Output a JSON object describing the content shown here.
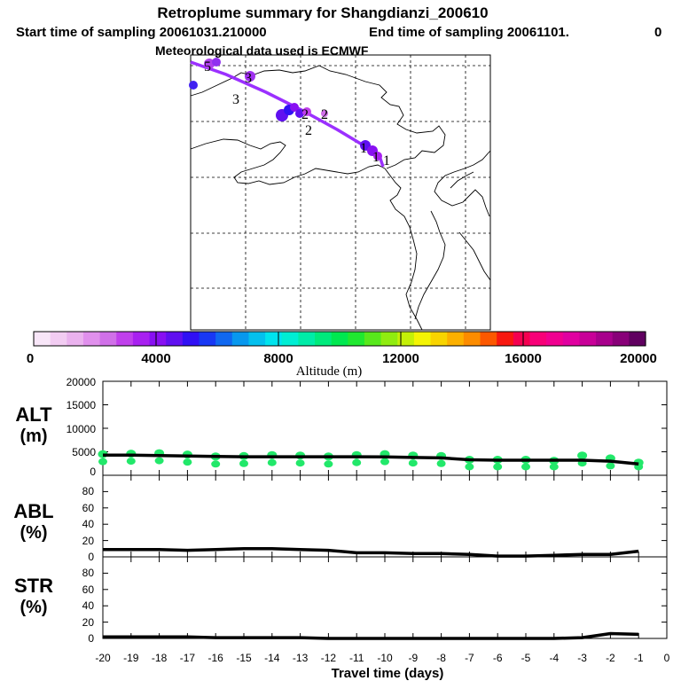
{
  "header": {
    "title": "Retroplume summary for Shangdianzi_200610",
    "subtitle_start": "Start time of sampling 20061031.210000",
    "subtitle_end": "End time of sampling 20061101.",
    "subtitle_tail": "0",
    "met_line": "Meteorological data used is ECMWF"
  },
  "colorbar": {
    "label": "Altitude (m)",
    "tick_labels": [
      "0",
      "4000",
      "8000",
      "12000",
      "16000",
      "20000"
    ],
    "range": [
      0,
      20000
    ],
    "colors": [
      "#f8e6f8",
      "#f2ccf2",
      "#eab2ee",
      "#e090ec",
      "#d070e8",
      "#c040ec",
      "#a820f0",
      "#8810f2",
      "#6010f0",
      "#3010f4",
      "#1838f4",
      "#1068f0",
      "#0898ee",
      "#04c0ee",
      "#00e4ee",
      "#00eed4",
      "#00eca8",
      "#00ea7c",
      "#00e850",
      "#20e830",
      "#58e81c",
      "#90ec10",
      "#c4f008",
      "#f4f404",
      "#f8d400",
      "#fcb000",
      "#fc8c00",
      "#fc5800",
      "#f81810",
      "#f40050",
      "#f80078",
      "#f00090",
      "#e000a0",
      "#c80098",
      "#a8008c",
      "#880078",
      "#600060"
    ]
  },
  "map": {
    "trajectory_labels": [
      "5",
      "3",
      "3",
      "2",
      "2",
      "2",
      "1",
      "1",
      "1"
    ]
  },
  "panels": {
    "alt": {
      "label_line1": "ALT",
      "label_line2": "(m)",
      "ticks": [
        "0",
        "5000",
        "10000",
        "15000",
        "20000"
      ]
    },
    "abl": {
      "label_line1": "ABL",
      "label_line2": "(%)",
      "ticks": [
        "0",
        "20",
        "40",
        "60",
        "80"
      ]
    },
    "str": {
      "label_line1": "STR",
      "label_line2": "(%)",
      "ticks": [
        "0",
        "20",
        "40",
        "60",
        "80"
      ]
    }
  },
  "xaxis": {
    "label": "Travel time (days)",
    "ticks": [
      "-20",
      "-19",
      "-18",
      "-17",
      "-16",
      "-15",
      "-14",
      "-13",
      "-12",
      "-11",
      "-10",
      "-9",
      "-8",
      "-7",
      "-6",
      "-5",
      "-4",
      "-3",
      "-2",
      "-1",
      "0"
    ]
  },
  "chart_data": [
    {
      "type": "line",
      "name": "altitude",
      "title": "ALT (m)",
      "xlabel": "Travel time (days)",
      "ylabel": "ALT (m)",
      "xlim": [
        -20,
        0
      ],
      "ylim": [
        0,
        20000
      ],
      "x": [
        -20,
        -19,
        -18,
        -17,
        -16,
        -15,
        -14,
        -13,
        -12,
        -11,
        -10,
        -9,
        -8,
        -7,
        -6,
        -5,
        -4,
        -3,
        -2,
        -1
      ],
      "series": [
        {
          "name": "mean altitude",
          "values": [
            4300,
            4300,
            4200,
            4100,
            4000,
            3950,
            3950,
            3950,
            3950,
            3950,
            3900,
            3800,
            3700,
            3300,
            3200,
            3200,
            3200,
            3200,
            3000,
            2400
          ]
        },
        {
          "name": "plume altitude points",
          "values": [
            4500,
            4600,
            4700,
            4400,
            4000,
            4100,
            4300,
            4200,
            4000,
            4300,
            4500,
            4200,
            4100,
            3300,
            3300,
            3300,
            3100,
            4200,
            3600,
            2700
          ]
        }
      ]
    },
    {
      "type": "line",
      "name": "abl",
      "title": "ABL (%)",
      "xlabel": "Travel time (days)",
      "ylabel": "ABL (%)",
      "xlim": [
        -20,
        0
      ],
      "ylim": [
        0,
        100
      ],
      "x": [
        -20,
        -19,
        -18,
        -17,
        -16,
        -15,
        -14,
        -13,
        -12,
        -11,
        -10,
        -9,
        -8,
        -7,
        -6,
        -5,
        -4,
        -3,
        -2,
        -1
      ],
      "series": [
        {
          "name": "ABL fraction",
          "values": [
            9,
            9,
            9,
            8,
            9,
            10,
            10,
            9,
            8,
            5,
            5,
            4,
            4,
            3,
            1,
            1,
            2,
            3,
            3,
            7
          ]
        }
      ]
    },
    {
      "type": "line",
      "name": "str",
      "title": "STR (%)",
      "xlabel": "Travel time (days)",
      "ylabel": "STR (%)",
      "xlim": [
        -20,
        0
      ],
      "ylim": [
        0,
        100
      ],
      "x": [
        -20,
        -19,
        -18,
        -17,
        -16,
        -15,
        -14,
        -13,
        -12,
        -11,
        -10,
        -9,
        -8,
        -7,
        -6,
        -5,
        -4,
        -3,
        -2,
        -1
      ],
      "series": [
        {
          "name": "STR fraction",
          "values": [
            2,
            2,
            2,
            2,
            1,
            1,
            1,
            1,
            0,
            0,
            0,
            0,
            0,
            0,
            0,
            0,
            0,
            1,
            6,
            5
          ]
        }
      ]
    }
  ]
}
